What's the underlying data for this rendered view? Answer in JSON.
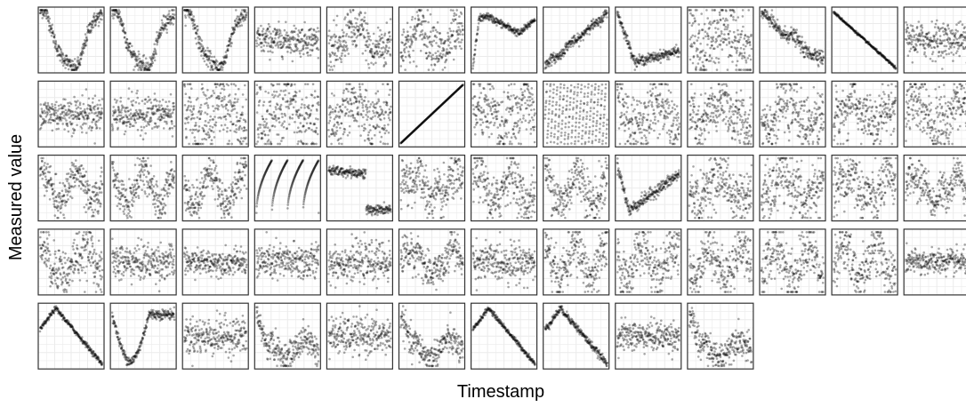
{
  "figure": {
    "xlabel": "Timestamp",
    "ylabel": "Measured value",
    "panel_background": "#ffffff",
    "grid_color": "#ebebeb",
    "border_color": "#333333",
    "point_color": "#000000",
    "point_opacity": 0.35
  },
  "chart_data": {
    "type": "scatter",
    "description_of_layout": "small multiples, 13 columns x 5 rows, 62 panels",
    "grid": true,
    "x_ticks_shown": false,
    "y_ticks_shown": false,
    "panels": [
      {
        "shape": "u",
        "noise": 0.06
      },
      {
        "shape": "u",
        "noise": 0.07
      },
      {
        "shape": "u",
        "noise": 0.07
      },
      {
        "shape": "noise",
        "noise": 0.12
      },
      {
        "shape": "wave",
        "noise": 0.18
      },
      {
        "shape": "wave",
        "noise": 0.2
      },
      {
        "shape": "hump",
        "noise": 0.03
      },
      {
        "shape": "rise",
        "noise": 0.04
      },
      {
        "shape": "dropflat",
        "noise": 0.04
      },
      {
        "shape": "wave",
        "noise": 0.3
      },
      {
        "shape": "decline",
        "noise": 0.06
      },
      {
        "shape": "line_down",
        "noise": 0.01
      },
      {
        "shape": "noise",
        "noise": 0.14
      },
      {
        "shape": "noise",
        "noise": 0.14
      },
      {
        "shape": "noise",
        "noise": 0.15
      },
      {
        "shape": "wave",
        "noise": 0.28
      },
      {
        "shape": "wave",
        "noise": 0.28
      },
      {
        "shape": "wave",
        "noise": 0.25
      },
      {
        "shape": "line_up",
        "noise": 0.0
      },
      {
        "shape": "wave",
        "noise": 0.25
      },
      {
        "shape": "saw",
        "noise": 0.02
      },
      {
        "shape": "wave",
        "noise": 0.25
      },
      {
        "shape": "wave",
        "noise": 0.22
      },
      {
        "shape": "wave",
        "noise": 0.22
      },
      {
        "shape": "wave",
        "noise": 0.22
      },
      {
        "shape": "wave",
        "noise": 0.25
      },
      {
        "shape": "wave2",
        "noise": 0.15
      },
      {
        "shape": "wave2",
        "noise": 0.15
      },
      {
        "shape": "wave2",
        "noise": 0.15
      },
      {
        "shape": "arcs",
        "noise": 0.0
      },
      {
        "shape": "step",
        "noise": 0.04
      },
      {
        "shape": "wave",
        "noise": 0.2
      },
      {
        "shape": "wave2",
        "noise": 0.2
      },
      {
        "shape": "wave2",
        "noise": 0.2
      },
      {
        "shape": "vrise",
        "noise": 0.05
      },
      {
        "shape": "wave",
        "noise": 0.2
      },
      {
        "shape": "wave",
        "noise": 0.22
      },
      {
        "shape": "wave",
        "noise": 0.22
      },
      {
        "shape": "wave",
        "noise": 0.15
      },
      {
        "shape": "wave",
        "noise": 0.2
      },
      {
        "shape": "noise",
        "noise": 0.15
      },
      {
        "shape": "noise",
        "noise": 0.1
      },
      {
        "shape": "noise",
        "noise": 0.15
      },
      {
        "shape": "noise",
        "noise": 0.15
      },
      {
        "shape": "wave",
        "noise": 0.15
      },
      {
        "shape": "noise",
        "noise": 0.15
      },
      {
        "shape": "wave2",
        "noise": 0.2
      },
      {
        "shape": "wave2",
        "noise": 0.2
      },
      {
        "shape": "wave2",
        "noise": 0.2
      },
      {
        "shape": "wave2",
        "noise": 0.22
      },
      {
        "shape": "wave2",
        "noise": 0.22
      },
      {
        "shape": "noise",
        "noise": 0.1
      },
      {
        "shape": "peak_early",
        "noise": 0.02
      },
      {
        "shape": "v",
        "noise": 0.04
      },
      {
        "shape": "noise",
        "noise": 0.15
      },
      {
        "shape": "drop_wave",
        "noise": 0.12
      },
      {
        "shape": "noise",
        "noise": 0.15
      },
      {
        "shape": "drop_wave",
        "noise": 0.12
      },
      {
        "shape": "peak_early",
        "noise": 0.02
      },
      {
        "shape": "peak_early",
        "noise": 0.03
      },
      {
        "shape": "noise",
        "noise": 0.12
      },
      {
        "shape": "drop_wave",
        "noise": 0.12
      }
    ]
  }
}
